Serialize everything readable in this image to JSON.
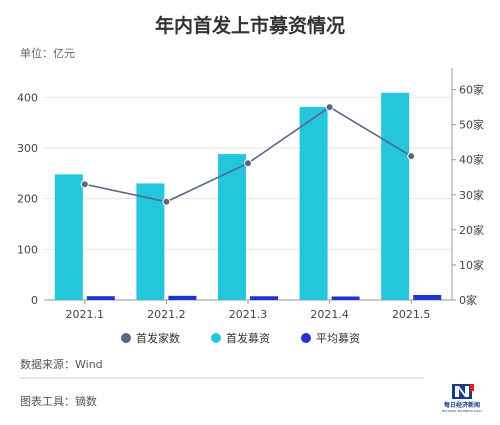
{
  "title": "年内首发上市募资情况",
  "unit_label": "单位：亿元",
  "source": "数据来源：Wind",
  "tool": "图表工具：镝数",
  "logo_text": "每日经济新闻",
  "logo_subtext": "NATIONAL BUSINESS DAILY",
  "colors": {
    "ipo_count": "#56678a",
    "ipo_raise": "#24c6dc",
    "avg_raise": "#1e34d0",
    "grid": "#e6e6e6",
    "axis": "#999999"
  },
  "chart_data": {
    "type": "bar",
    "categories": [
      "2021.1",
      "2021.2",
      "2021.3",
      "2021.4",
      "2021.5"
    ],
    "left_axis": {
      "ticks": [
        "0",
        "100",
        "200",
        "300",
        "400"
      ],
      "ylim": [
        0,
        450
      ]
    },
    "right_axis": {
      "ticks": [
        "0家",
        "10家",
        "20家",
        "30家",
        "40家",
        "50家",
        "60家"
      ],
      "ylim": [
        0,
        65
      ]
    },
    "series": [
      {
        "name": "首发家数",
        "kind": "line",
        "axis": "right",
        "values": [
          33,
          28,
          39,
          55,
          41
        ]
      },
      {
        "name": "首发募资",
        "kind": "bar",
        "axis": "left",
        "values": [
          248,
          230,
          288,
          381,
          409
        ]
      },
      {
        "name": "平均募资",
        "kind": "bar",
        "axis": "left",
        "values": [
          7.5,
          8.2,
          7.4,
          6.9,
          9.9
        ]
      }
    ],
    "grid": true,
    "legend": "bottom"
  }
}
